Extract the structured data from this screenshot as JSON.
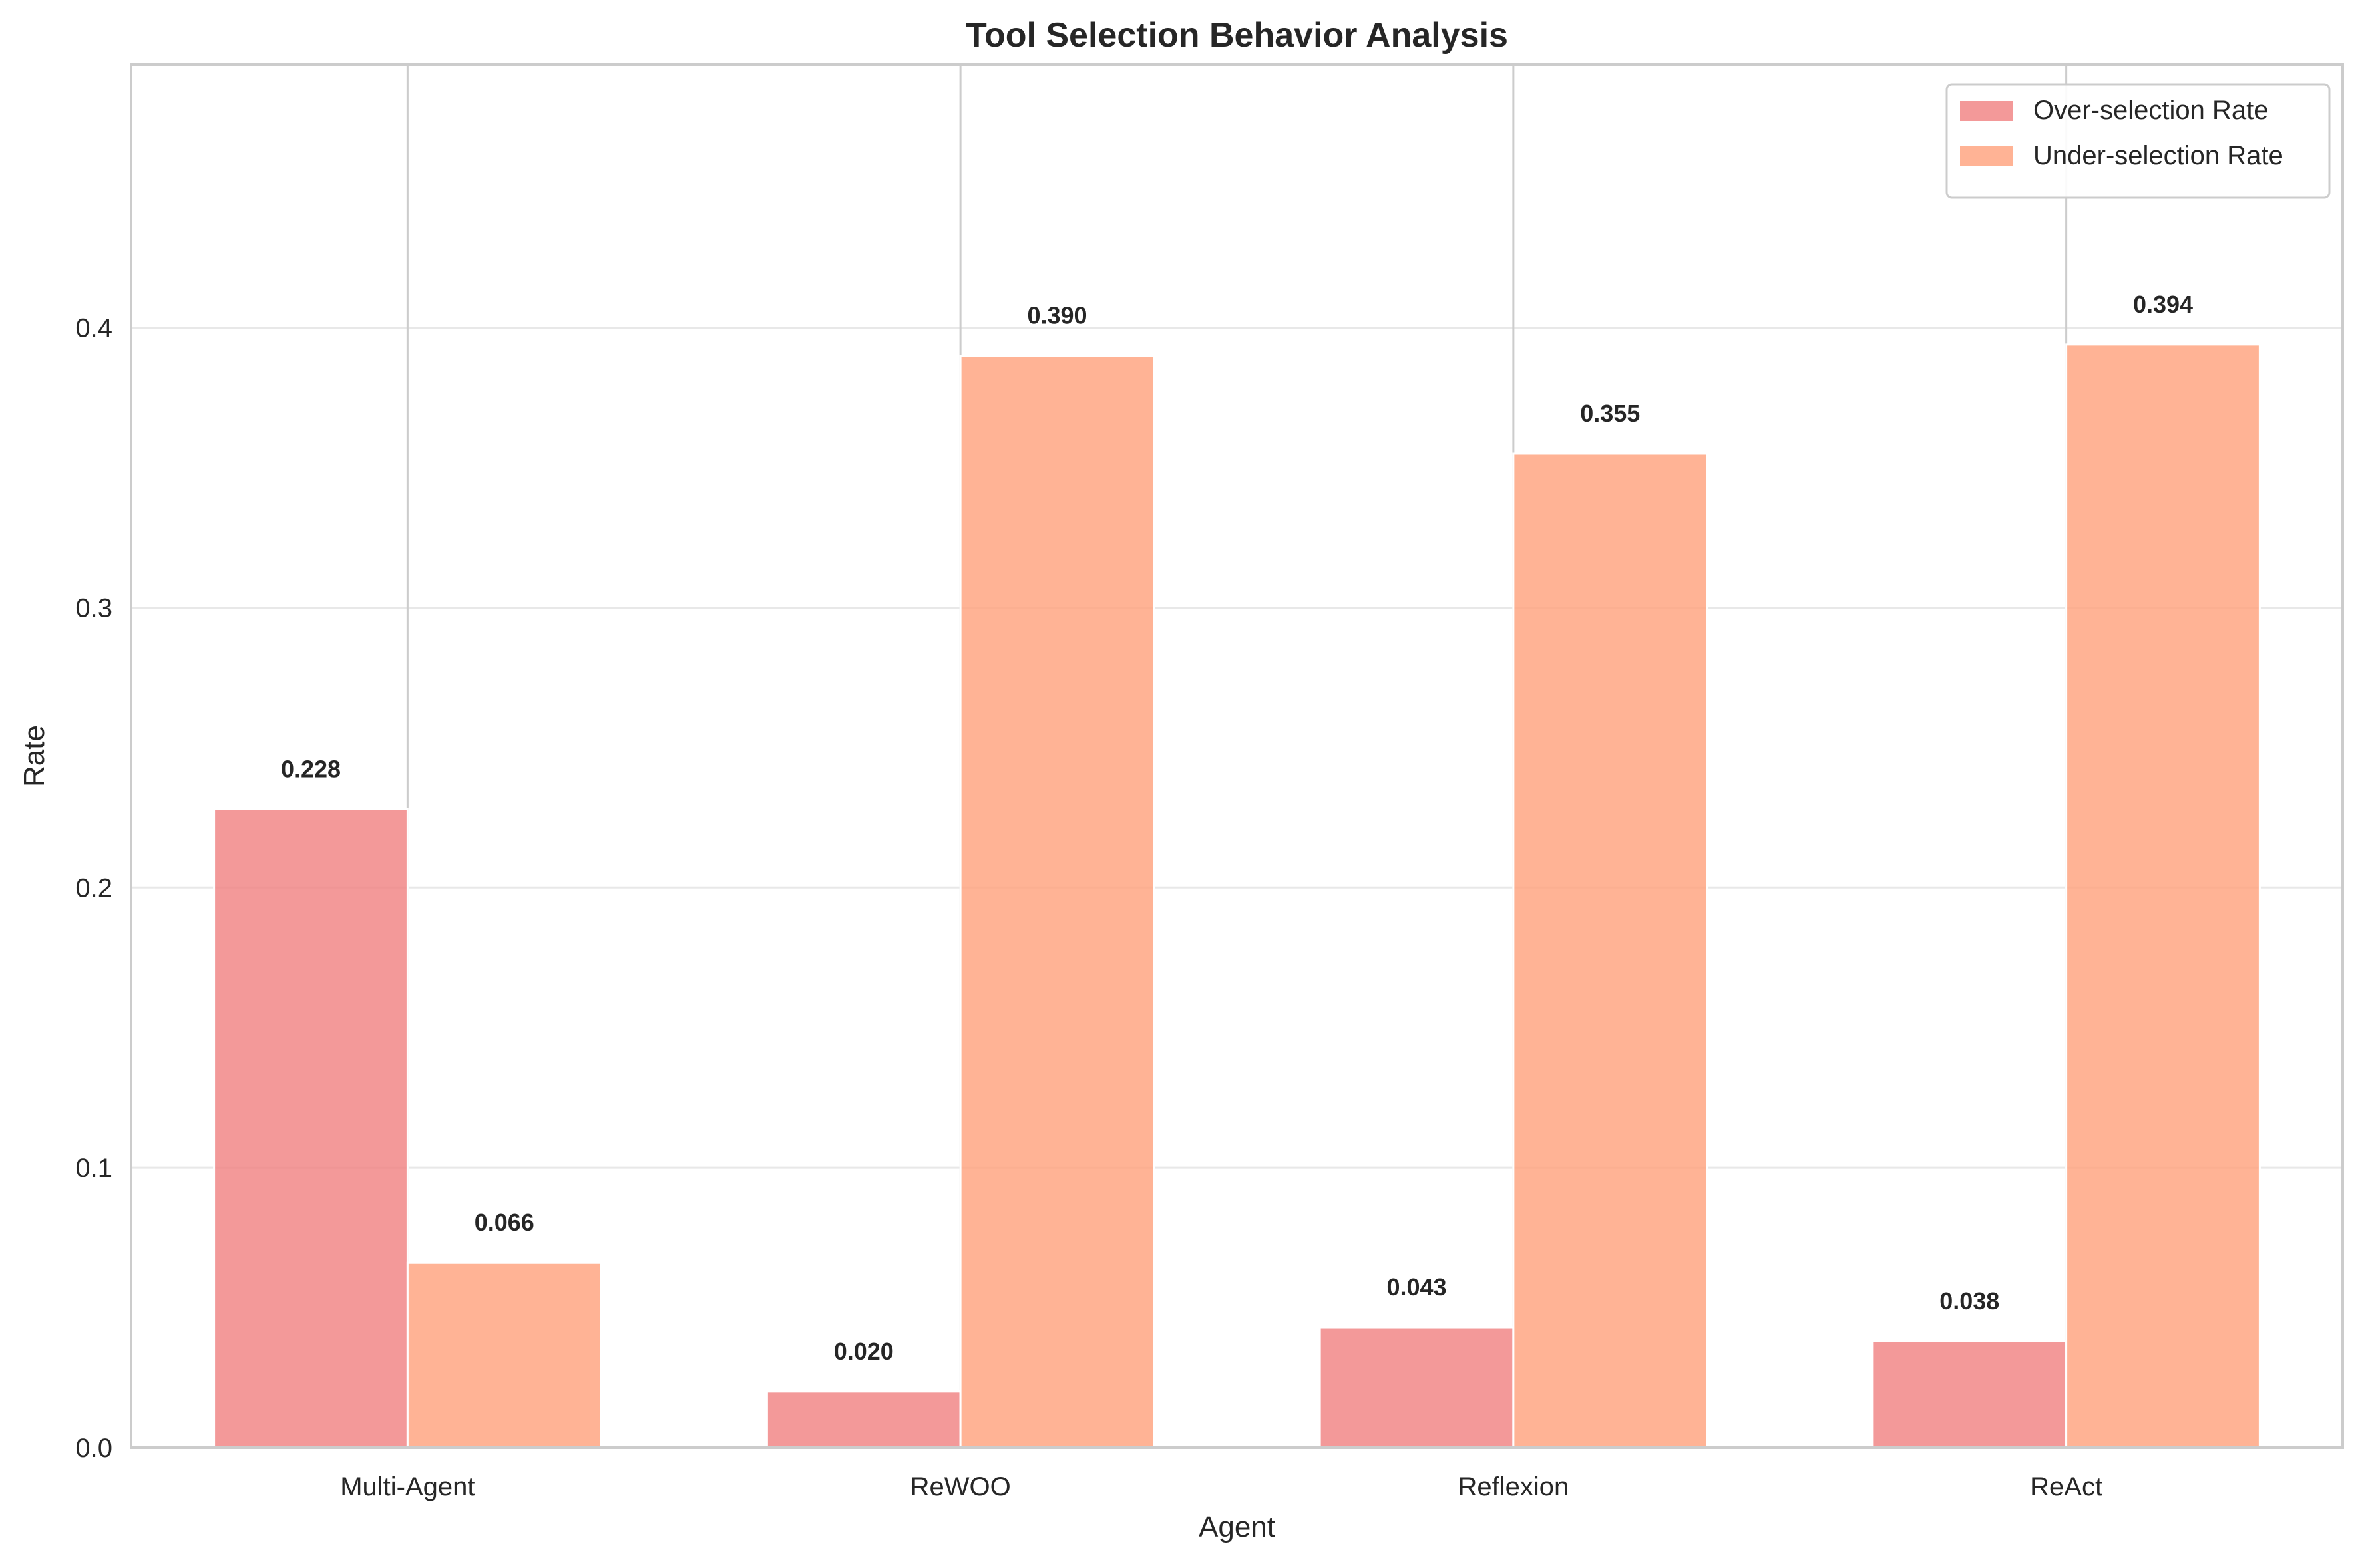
{
  "chart_data": {
    "type": "bar",
    "title": "Tool Selection Behavior Analysis",
    "xlabel": "Agent",
    "ylabel": "Rate",
    "categories": [
      "Multi-Agent",
      "ReWOO",
      "Reflexion",
      "ReAct"
    ],
    "series": [
      {
        "name": "Over-selection Rate",
        "values": [
          0.228,
          0.02,
          0.043,
          0.038
        ],
        "color": "#F08080",
        "labels": [
          "0.228",
          "0.020",
          "0.043",
          "0.038"
        ]
      },
      {
        "name": "Under-selection Rate",
        "values": [
          0.066,
          0.39,
          0.355,
          0.394
        ],
        "color": "#FFA07A",
        "labels": [
          "0.066",
          "0.390",
          "0.355",
          "0.394"
        ]
      }
    ],
    "ylim": [
      0,
      0.494
    ],
    "yticks": [
      0.0,
      0.1,
      0.2,
      0.3,
      0.4
    ],
    "ytick_labels": [
      "0.0",
      "0.1",
      "0.2",
      "0.3",
      "0.4"
    ],
    "grid": true,
    "legend_position": "top-right"
  }
}
